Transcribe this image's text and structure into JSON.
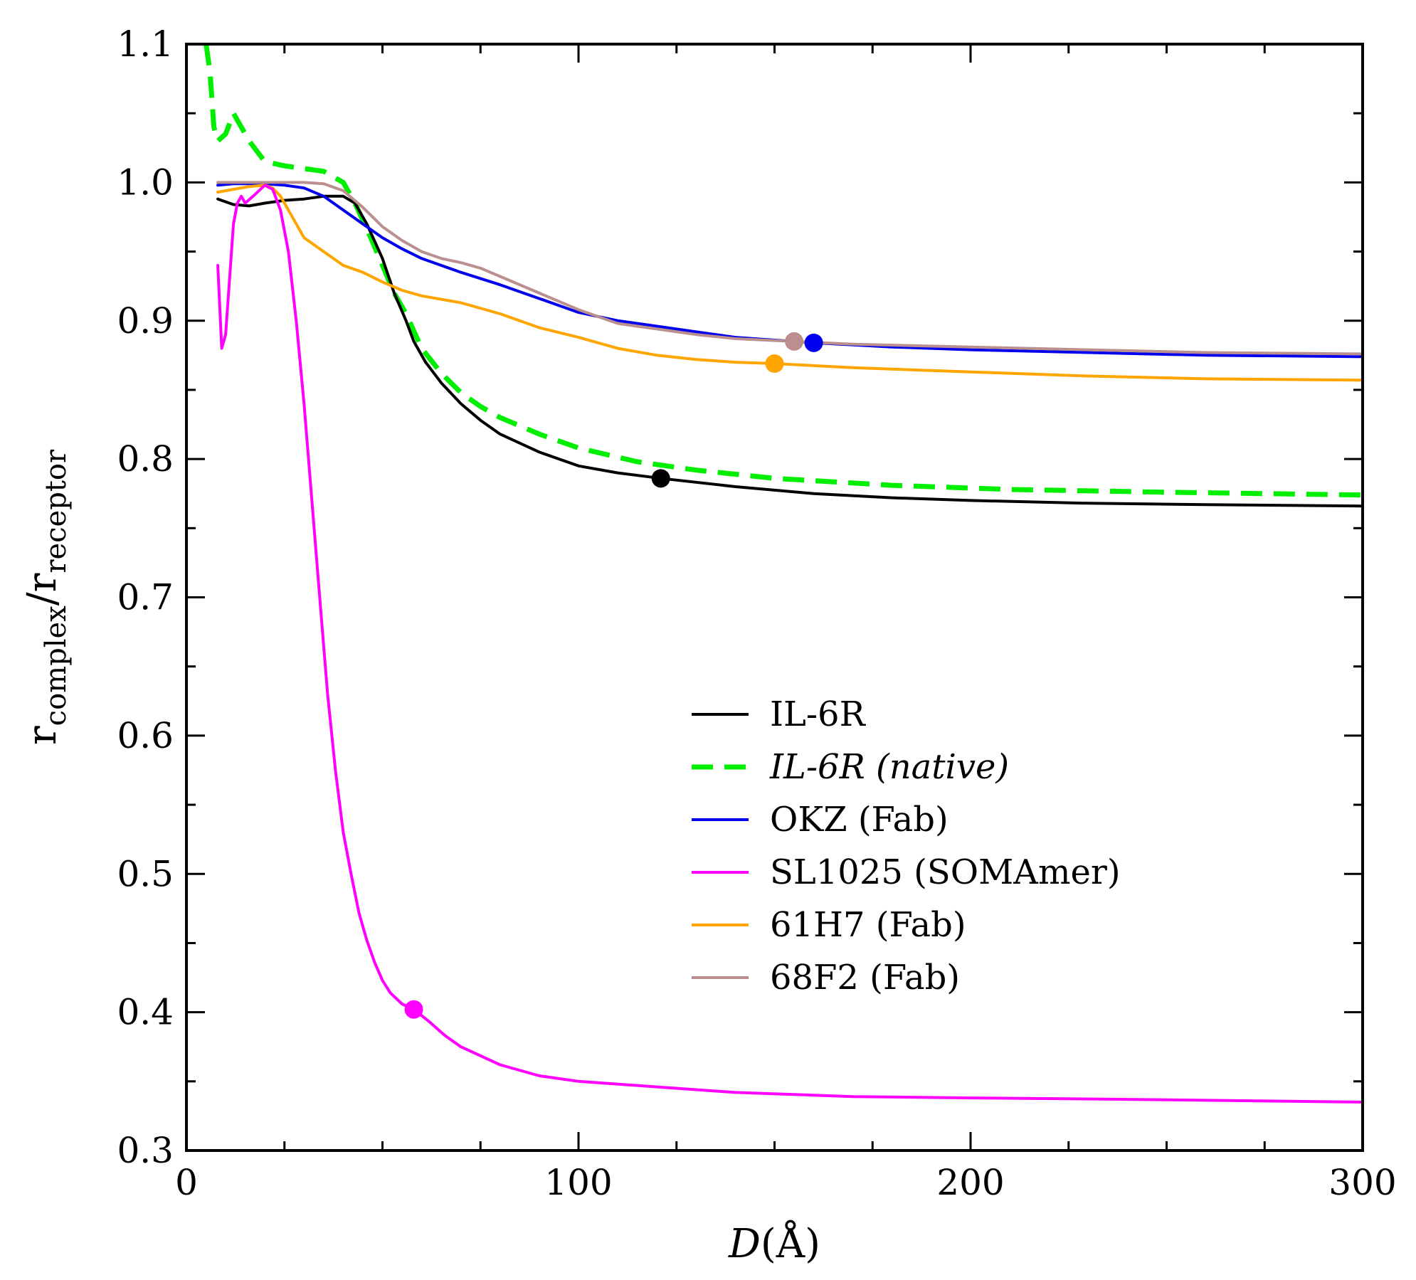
{
  "chart_data": {
    "type": "line",
    "title": "",
    "xlabel": "D(Å)",
    "xlabel_italic_part": "D",
    "xlabel_unit_part": "(Å)",
    "ylabel": "r_complex/r_receptor",
    "ylabel_main1": "r",
    "ylabel_sub1": "complex",
    "ylabel_slash": "/",
    "ylabel_main2": "r",
    "ylabel_sub2": "receptor",
    "xlim": [
      0,
      300
    ],
    "ylim": [
      0.3,
      1.1
    ],
    "xticks": [
      0,
      100,
      200,
      300
    ],
    "xtick_labels": [
      "0",
      "100",
      "200",
      "300"
    ],
    "yticks": [
      0.3,
      0.4,
      0.5,
      0.6,
      0.7,
      0.8,
      0.9,
      1.0,
      1.1
    ],
    "ytick_labels": [
      "0.3",
      "0.4",
      "0.5",
      "0.6",
      "0.7",
      "0.8",
      "0.9",
      "1.0",
      "1.1"
    ],
    "grid": false,
    "legend_position": "center-right",
    "series": [
      {
        "name": "IL-6R",
        "color": "#000000",
        "dash": "solid",
        "italic": false,
        "x": [
          8,
          12,
          16,
          20,
          25,
          30,
          35,
          40,
          43,
          46,
          50,
          53,
          56,
          58,
          61,
          65,
          70,
          75,
          80,
          90,
          100,
          110,
          121,
          140,
          160,
          180,
          200,
          230,
          260,
          300
        ],
        "y": [
          0.988,
          0.984,
          0.983,
          0.985,
          0.987,
          0.988,
          0.99,
          0.99,
          0.985,
          0.97,
          0.945,
          0.92,
          0.9,
          0.885,
          0.87,
          0.855,
          0.84,
          0.828,
          0.818,
          0.805,
          0.795,
          0.79,
          0.786,
          0.78,
          0.775,
          0.772,
          0.77,
          0.768,
          0.767,
          0.766
        ],
        "marker": {
          "x": 121,
          "y": 0.786
        }
      },
      {
        "name": "IL-6R (native)",
        "color": "#00ee00",
        "dash": "dashed",
        "italic": true,
        "x": [
          5,
          6,
          7,
          8,
          10,
          12,
          14,
          16,
          20,
          25,
          30,
          35,
          40,
          43,
          47,
          50,
          53,
          56,
          60,
          65,
          70,
          75,
          80,
          90,
          100,
          115,
          130,
          150,
          180,
          210,
          250,
          300
        ],
        "y": [
          1.1,
          1.08,
          1.04,
          1.03,
          1.035,
          1.05,
          1.04,
          1.03,
          1.015,
          1.012,
          1.01,
          1.008,
          1.0,
          0.985,
          0.96,
          0.94,
          0.92,
          0.905,
          0.88,
          0.862,
          0.848,
          0.838,
          0.83,
          0.818,
          0.808,
          0.798,
          0.792,
          0.786,
          0.781,
          0.778,
          0.776,
          0.774
        ]
      },
      {
        "name": "OKZ (Fab)",
        "color": "#0000ee",
        "dash": "solid",
        "italic": false,
        "x": [
          8,
          12,
          16,
          20,
          25,
          30,
          35,
          40,
          45,
          50,
          55,
          60,
          70,
          80,
          90,
          100,
          110,
          120,
          130,
          140,
          150,
          160,
          180,
          200,
          230,
          260,
          300
        ],
        "y": [
          0.998,
          0.999,
          0.999,
          0.999,
          0.998,
          0.996,
          0.99,
          0.98,
          0.97,
          0.96,
          0.952,
          0.945,
          0.935,
          0.926,
          0.916,
          0.906,
          0.9,
          0.896,
          0.892,
          0.888,
          0.886,
          0.884,
          0.881,
          0.879,
          0.877,
          0.875,
          0.874
        ],
        "marker": {
          "x": 160,
          "y": 0.884
        }
      },
      {
        "name": "SL1025 (SOMAmer)",
        "color": "#ff00ff",
        "dash": "solid",
        "italic": false,
        "x": [
          8,
          9,
          10,
          11,
          12,
          13,
          14,
          15,
          17,
          20,
          22,
          24,
          26,
          28,
          30,
          32,
          34,
          36,
          38,
          40,
          42,
          44,
          46,
          48,
          50,
          52,
          55,
          58,
          62,
          66,
          70,
          80,
          90,
          100,
          120,
          140,
          170,
          200,
          240,
          300
        ],
        "y": [
          0.94,
          0.88,
          0.89,
          0.93,
          0.97,
          0.985,
          0.99,
          0.985,
          0.99,
          0.998,
          0.995,
          0.98,
          0.95,
          0.9,
          0.84,
          0.77,
          0.7,
          0.63,
          0.575,
          0.53,
          0.5,
          0.472,
          0.452,
          0.436,
          0.423,
          0.414,
          0.406,
          0.402,
          0.393,
          0.383,
          0.375,
          0.362,
          0.354,
          0.35,
          0.346,
          0.342,
          0.339,
          0.338,
          0.337,
          0.335
        ],
        "marker": {
          "x": 58,
          "y": 0.402
        }
      },
      {
        "name": "61H7 (Fab)",
        "color": "#ffa500",
        "dash": "solid",
        "italic": false,
        "x": [
          8,
          12,
          16,
          20,
          22,
          24,
          26,
          28,
          30,
          35,
          40,
          45,
          50,
          55,
          60,
          70,
          80,
          90,
          100,
          110,
          120,
          130,
          140,
          150,
          170,
          200,
          230,
          260,
          300
        ],
        "y": [
          0.993,
          0.995,
          0.997,
          0.998,
          0.996,
          0.99,
          0.98,
          0.97,
          0.96,
          0.95,
          0.94,
          0.935,
          0.928,
          0.922,
          0.918,
          0.913,
          0.905,
          0.895,
          0.888,
          0.88,
          0.875,
          0.872,
          0.87,
          0.869,
          0.866,
          0.863,
          0.86,
          0.858,
          0.857
        ],
        "marker": {
          "x": 150,
          "y": 0.869
        }
      },
      {
        "name": "68F2 (Fab)",
        "color": "#bc8f8f",
        "dash": "solid",
        "italic": false,
        "x": [
          8,
          12,
          16,
          20,
          25,
          30,
          35,
          40,
          45,
          50,
          55,
          60,
          65,
          70,
          75,
          80,
          90,
          100,
          110,
          120,
          130,
          140,
          155,
          170,
          200,
          230,
          260,
          300
        ],
        "y": [
          1.0,
          1.0,
          1.0,
          1.0,
          1.0,
          1.0,
          0.999,
          0.994,
          0.982,
          0.968,
          0.958,
          0.95,
          0.945,
          0.942,
          0.938,
          0.932,
          0.92,
          0.908,
          0.898,
          0.894,
          0.89,
          0.887,
          0.885,
          0.883,
          0.881,
          0.879,
          0.877,
          0.876
        ],
        "marker": {
          "x": 155,
          "y": 0.885
        }
      }
    ]
  }
}
